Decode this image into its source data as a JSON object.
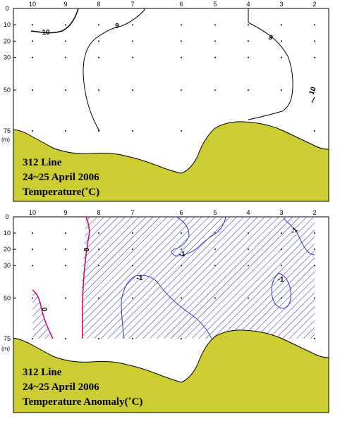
{
  "colors": {
    "seabed": "#cccc33",
    "hatch": "#3333cc",
    "zero_contour": "#cc0066",
    "contour": "#000000"
  },
  "chart_data": [
    {
      "type": "contour",
      "title_lines": [
        "312 Line",
        "24~25 April 2006",
        "Temperature(˚C)"
      ],
      "unit_label": "(m)",
      "x_ticks": [
        "10",
        "9",
        "8",
        "7",
        "6",
        "5",
        "4",
        "3",
        "2"
      ],
      "y_ticks": [
        "0",
        "10",
        "20",
        "30",
        "50",
        "75"
      ],
      "depth_range": [
        0,
        75
      ],
      "contours": [
        {
          "level": 10,
          "label": "10"
        },
        {
          "level": 9,
          "label": "9"
        },
        {
          "level": 10,
          "label": "10"
        }
      ]
    },
    {
      "type": "contour",
      "title_lines": [
        "312 Line",
        "24~25 April 2006",
        "Temperature Anomaly(˚C)"
      ],
      "unit_label": "(m)",
      "x_ticks": [
        "10",
        "9",
        "8",
        "7",
        "6",
        "5",
        "4",
        "3",
        "2"
      ],
      "y_ticks": [
        "0",
        "10",
        "20",
        "30",
        "50",
        "75"
      ],
      "depth_range": [
        0,
        75
      ],
      "contours": [
        {
          "level": 0,
          "label": "0"
        },
        {
          "level": 0,
          "label": "0"
        },
        {
          "level": -1,
          "label": "-1"
        },
        {
          "level": -1,
          "label": "-1"
        },
        {
          "level": -1,
          "label": "-1"
        },
        {
          "level": -1,
          "label": "-1"
        }
      ],
      "shaded_region": "anomaly < 0"
    }
  ]
}
